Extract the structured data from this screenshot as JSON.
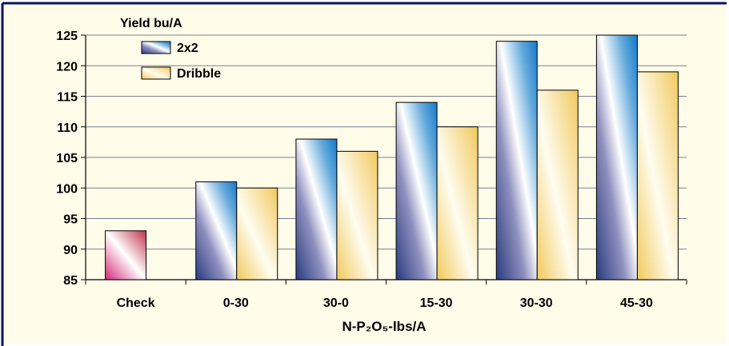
{
  "chart_data": {
    "type": "bar",
    "ylabel": "Yield bu/A",
    "xlabel": "N-P₂O₅-lbs/A",
    "ylim": [
      85,
      125
    ],
    "yticks": [
      85,
      90,
      95,
      100,
      105,
      110,
      115,
      120,
      125
    ],
    "grid": true,
    "legend_position": "top-left",
    "categories": [
      "Check",
      "0-30",
      "30-0",
      "15-30",
      "30-30",
      "45-30"
    ],
    "series": [
      {
        "name": "2x2",
        "values": [
          null,
          101,
          108,
          114,
          124,
          125
        ]
      },
      {
        "name": "Dribble",
        "values": [
          null,
          100,
          106,
          110,
          116,
          119
        ]
      }
    ],
    "check_value": 93
  },
  "colors": {
    "background": "#FFFCE9",
    "frame": "#0A1462",
    "grid": "#7A8095",
    "series_2x2_light": "#FFFFFF",
    "series_2x2_mid": "#B0D6EE",
    "series_2x2_dark": "#1479C8",
    "series_2x2_deep": "#283C7E",
    "series_dribble_light": "#FFFDF1",
    "series_dribble_dark": "#F1C95D",
    "check_light": "#FFFFFF",
    "check_dark": "#D4287A"
  }
}
